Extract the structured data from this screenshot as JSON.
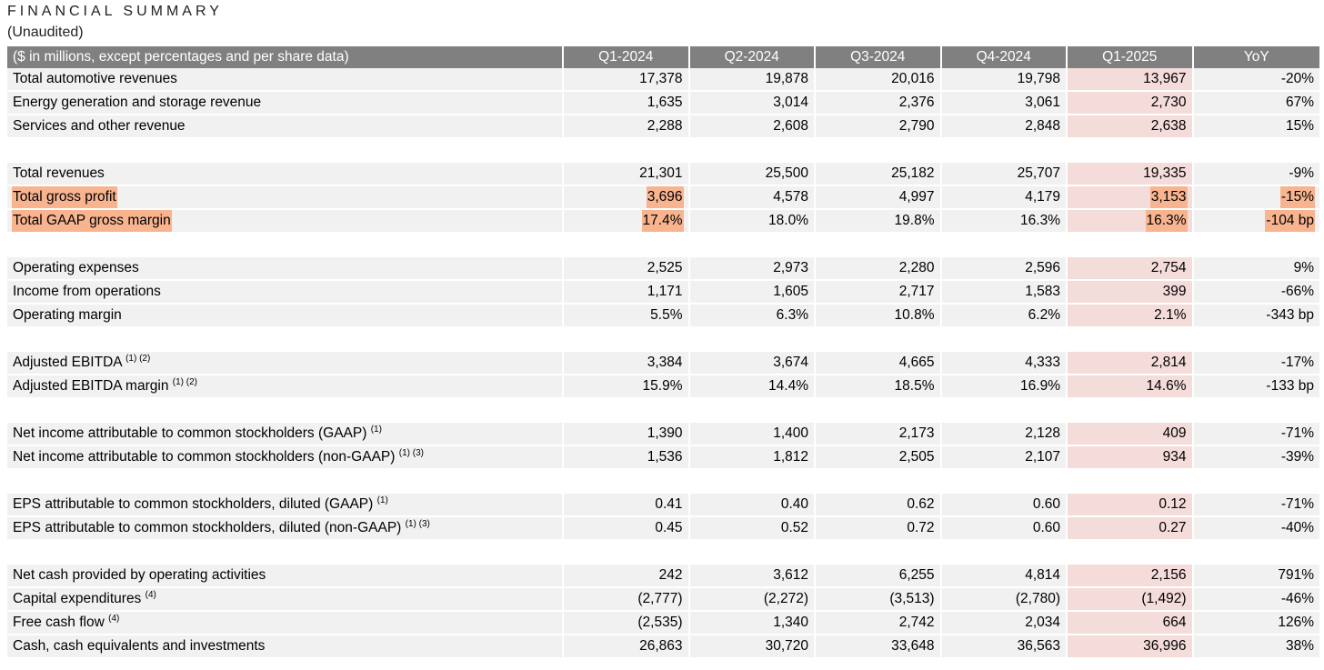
{
  "title": "FINANCIAL SUMMARY",
  "subtitle": "(Unaudited)",
  "headers": [
    "($ in millions, except percentages and per share data)",
    "Q1-2024",
    "Q2-2024",
    "Q3-2024",
    "Q4-2024",
    "Q1-2025",
    "YoY"
  ],
  "colors": {
    "header_bg": "#808080",
    "row_bg": "#f1f1f1",
    "q1_2025_bg": "#f4dcdb",
    "highlight": "#f8b48f"
  },
  "groups": [
    [
      {
        "label": "Total automotive revenues",
        "sup": "",
        "values": [
          "17,378",
          "19,878",
          "20,016",
          "19,798",
          "13,967",
          "-20%"
        ],
        "highlight": false
      },
      {
        "label": "Energy generation and storage revenue",
        "sup": "",
        "values": [
          "1,635",
          "3,014",
          "2,376",
          "3,061",
          "2,730",
          "67%"
        ],
        "highlight": false
      },
      {
        "label": "Services and other revenue",
        "sup": "",
        "values": [
          "2,288",
          "2,608",
          "2,790",
          "2,848",
          "2,638",
          "15%"
        ],
        "highlight": false
      }
    ],
    [
      {
        "label": "Total revenues",
        "sup": "",
        "values": [
          "21,301",
          "25,500",
          "25,182",
          "25,707",
          "19,335",
          "-9%"
        ],
        "highlight": false
      },
      {
        "label": "Total gross profit",
        "sup": "",
        "values": [
          "3,696",
          "4,578",
          "4,997",
          "4,179",
          "3,153",
          "-15%"
        ],
        "highlight": true
      },
      {
        "label": "Total GAAP gross margin",
        "sup": "",
        "values": [
          "17.4%",
          "18.0%",
          "19.8%",
          "16.3%",
          "16.3%",
          "-104 bp"
        ],
        "highlight": true
      }
    ],
    [
      {
        "label": "Operating expenses",
        "sup": "",
        "values": [
          "2,525",
          "2,973",
          "2,280",
          "2,596",
          "2,754",
          "9%"
        ],
        "highlight": false
      },
      {
        "label": "Income from operations",
        "sup": "",
        "values": [
          "1,171",
          "1,605",
          "2,717",
          "1,583",
          "399",
          "-66%"
        ],
        "highlight": false
      },
      {
        "label": "Operating margin",
        "sup": "",
        "values": [
          "5.5%",
          "6.3%",
          "10.8%",
          "6.2%",
          "2.1%",
          "-343 bp"
        ],
        "highlight": false
      }
    ],
    [
      {
        "label": "Adjusted EBITDA",
        "sup": "(1) (2)",
        "values": [
          "3,384",
          "3,674",
          "4,665",
          "4,333",
          "2,814",
          "-17%"
        ],
        "highlight": false
      },
      {
        "label": "Adjusted EBITDA margin",
        "sup": "(1) (2)",
        "values": [
          "15.9%",
          "14.4%",
          "18.5%",
          "16.9%",
          "14.6%",
          "-133 bp"
        ],
        "highlight": false
      }
    ],
    [
      {
        "label": "Net income attributable to common stockholders (GAAP)",
        "sup": "(1)",
        "values": [
          "1,390",
          "1,400",
          "2,173",
          "2,128",
          "409",
          "-71%"
        ],
        "highlight": false
      },
      {
        "label": "Net income attributable to common stockholders (non-GAAP)",
        "sup": "(1) (3)",
        "values": [
          "1,536",
          "1,812",
          "2,505",
          "2,107",
          "934",
          "-39%"
        ],
        "highlight": false
      }
    ],
    [
      {
        "label": "EPS attributable to common stockholders, diluted (GAAP)",
        "sup": "(1)",
        "values": [
          "0.41",
          "0.40",
          "0.62",
          "0.60",
          "0.12",
          "-71%"
        ],
        "highlight": false
      },
      {
        "label": "EPS attributable to common stockholders, diluted (non-GAAP)",
        "sup": "(1) (3)",
        "values": [
          "0.45",
          "0.52",
          "0.72",
          "0.60",
          "0.27",
          "-40%"
        ],
        "highlight": false
      }
    ],
    [
      {
        "label": "Net cash provided by operating activities",
        "sup": "",
        "values": [
          "242",
          "3,612",
          "6,255",
          "4,814",
          "2,156",
          "791%"
        ],
        "highlight": false
      },
      {
        "label": "Capital expenditures",
        "sup": "(4)",
        "values": [
          "(2,777)",
          "(2,272)",
          "(3,513)",
          "(2,780)",
          "(1,492)",
          "-46%"
        ],
        "highlight": false
      },
      {
        "label": "Free cash flow",
        "sup": "(4)",
        "values": [
          "(2,535)",
          "1,340",
          "2,742",
          "2,034",
          "664",
          "126%"
        ],
        "highlight": false
      },
      {
        "label": "Cash, cash equivalents and investments",
        "sup": "",
        "values": [
          "26,863",
          "30,720",
          "33,648",
          "36,563",
          "36,996",
          "38%"
        ],
        "highlight": false
      }
    ]
  ]
}
